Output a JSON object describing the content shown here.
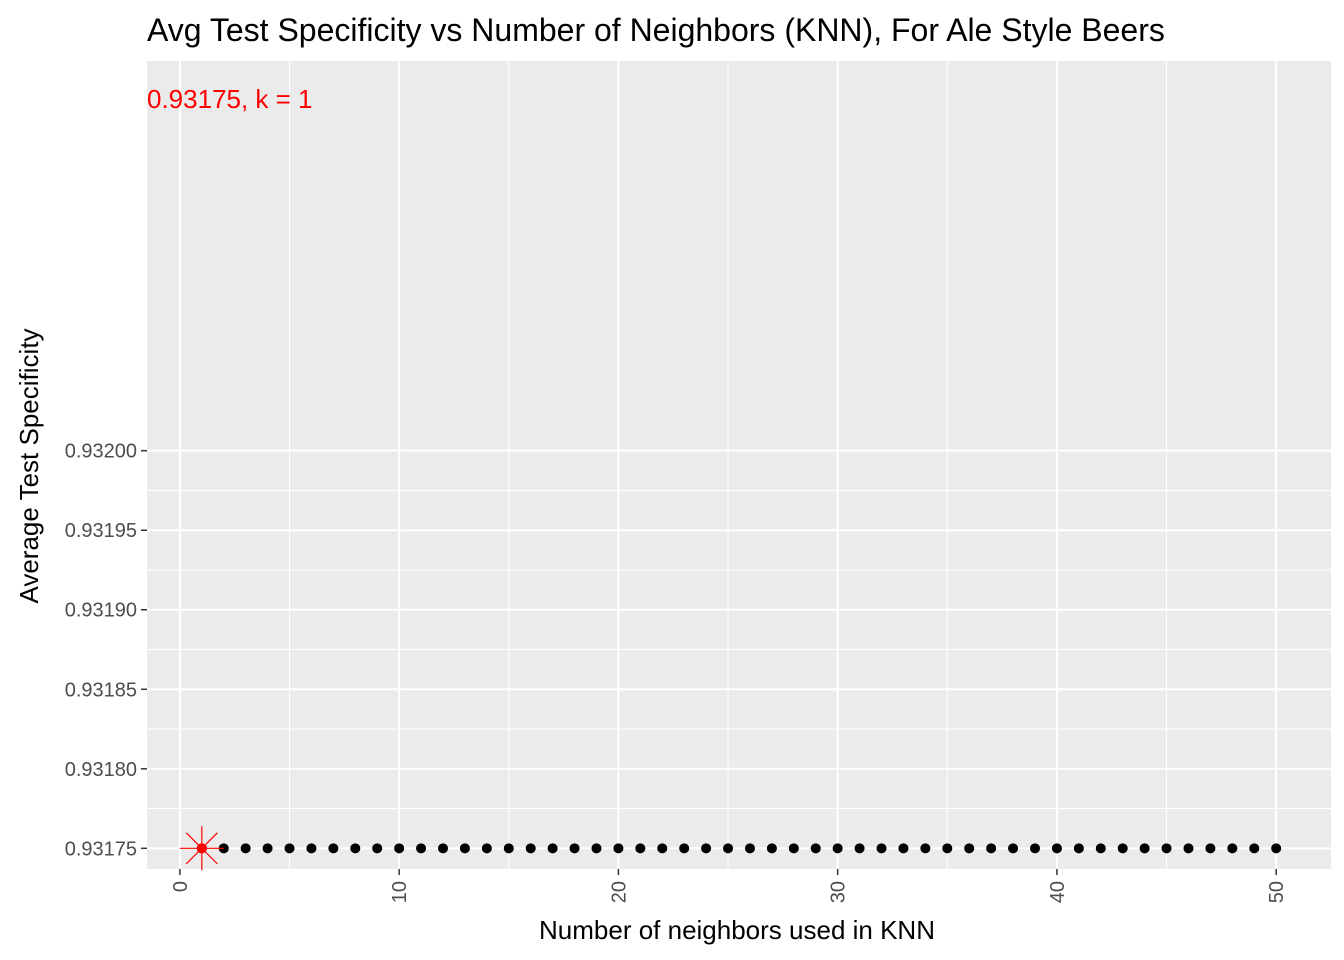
{
  "chart_data": {
    "type": "scatter",
    "title": "Avg Test Specificity vs Number of Neighbors (KNN), For Ale Style Beers",
    "xlabel": "Number of neighbors used in KNN",
    "ylabel": "Average Test Specificity",
    "xlim": [
      -1.5,
      52.5
    ],
    "ylim": [
      0.931737,
      0.932245
    ],
    "x_ticks": [
      0,
      10,
      20,
      30,
      40,
      50
    ],
    "x_tick_labels": [
      "0",
      "10",
      "20",
      "30",
      "40",
      "50"
    ],
    "y_ticks": [
      0.93175,
      0.9318,
      0.93185,
      0.9319,
      0.93195,
      0.932
    ],
    "y_tick_labels": [
      "0.93175",
      "0.93180",
      "0.93185",
      "0.93190",
      "0.93195",
      "0.93200"
    ],
    "grid": true,
    "point_color": "#000000",
    "highlight_color": "#ff0000",
    "panel_background": "#ebebeb",
    "series": [
      {
        "x": [
          1,
          2,
          3,
          4,
          5,
          6,
          7,
          8,
          9,
          10,
          11,
          12,
          13,
          14,
          15,
          16,
          17,
          18,
          19,
          20,
          21,
          22,
          23,
          24,
          25,
          26,
          27,
          28,
          29,
          30,
          31,
          32,
          33,
          34,
          35,
          36,
          37,
          38,
          39,
          40,
          41,
          42,
          43,
          44,
          45,
          46,
          47,
          48,
          49,
          50
        ],
        "y": [
          0.93175,
          0.93175,
          0.93175,
          0.93175,
          0.93175,
          0.93175,
          0.93175,
          0.93175,
          0.93175,
          0.93175,
          0.93175,
          0.93175,
          0.93175,
          0.93175,
          0.93175,
          0.93175,
          0.93175,
          0.93175,
          0.93175,
          0.93175,
          0.93175,
          0.93175,
          0.93175,
          0.93175,
          0.93175,
          0.93175,
          0.93175,
          0.93175,
          0.93175,
          0.93175,
          0.93175,
          0.93175,
          0.93175,
          0.93175,
          0.93175,
          0.93175,
          0.93175,
          0.93175,
          0.93175,
          0.93175,
          0.93175,
          0.93175,
          0.93175,
          0.93175,
          0.93175,
          0.93175,
          0.93175,
          0.93175,
          0.93175,
          0.93175
        ]
      }
    ],
    "highlight": {
      "x": 1,
      "y": 0.93175
    },
    "annotations": [
      {
        "text": "0.93175, k = 1"
      }
    ]
  }
}
